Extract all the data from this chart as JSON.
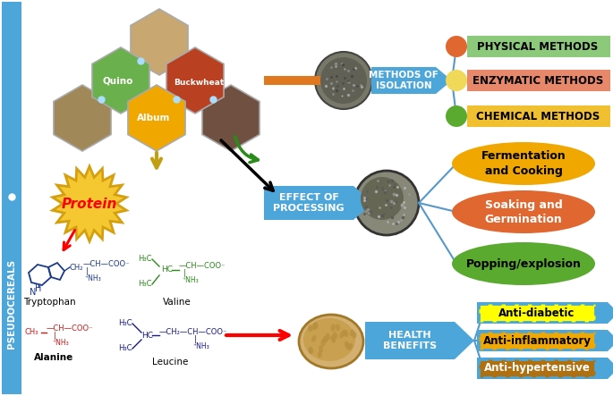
{
  "bg_color": "#ffffff",
  "sidebar_color": "#4da6d9",
  "sidebar_text": "PSEUDOCEREALS",
  "quino_color": "#6ab04c",
  "buckwheat_color": "#b94020",
  "album_color": "#f0a800",
  "grain_color": "#a08858",
  "top_grain_color": "#c8a870",
  "dark_grain_color": "#705040",
  "orange_line_color": "#e07820",
  "methods_box_color": "#4da6d9",
  "methods_box_text": "METHODS OF\nISOLATION",
  "physical_bg": "#8dc97a",
  "physical_text": "PHYSICAL METHODS",
  "physical_circle": "#e06830",
  "enzymatic_bg": "#e8886a",
  "enzymatic_text": "ENZYMATIC METHODS",
  "enzymatic_circle": "#f0d858",
  "chemical_bg": "#f0c030",
  "chemical_text": "CHEMICAL METHODS",
  "chemical_circle": "#5aaa30",
  "fermentation_color": "#f0a800",
  "fermentation_text": "Fermentation\nand Cooking",
  "soaking_color": "#e06830",
  "soaking_text": "Soaking and\nGermination",
  "popping_color": "#5aaa30",
  "popping_text": "Popping/explosion",
  "protein_color": "#f5c832",
  "protein_edge": "#d4a010",
  "protein_text": "Protein",
  "effect_box_color": "#4da6d9",
  "effect_box_text": "EFFECT OF\nPROCESSING",
  "health_box_color": "#4da6d9",
  "health_box_text": "HEALTH\nBENEFITS",
  "antidiabetic_bg": "#ffff00",
  "antidiabetic_text": "Anti-diabetic",
  "antiinflam_bg": "#f0a800",
  "antiinflam_text": "Anti-inflammatory",
  "antihyper_bg": "#b07010",
  "antihyper_text": "Anti-hypertensive",
  "arrow_blue": "#4da6d9",
  "line_blue": "#5599cc",
  "tryptophan_color": "#1a3a8a",
  "valine_color": "#2a8a1a",
  "alanine_color": "#cc1a1a",
  "leucine_color": "#1a1a8a"
}
